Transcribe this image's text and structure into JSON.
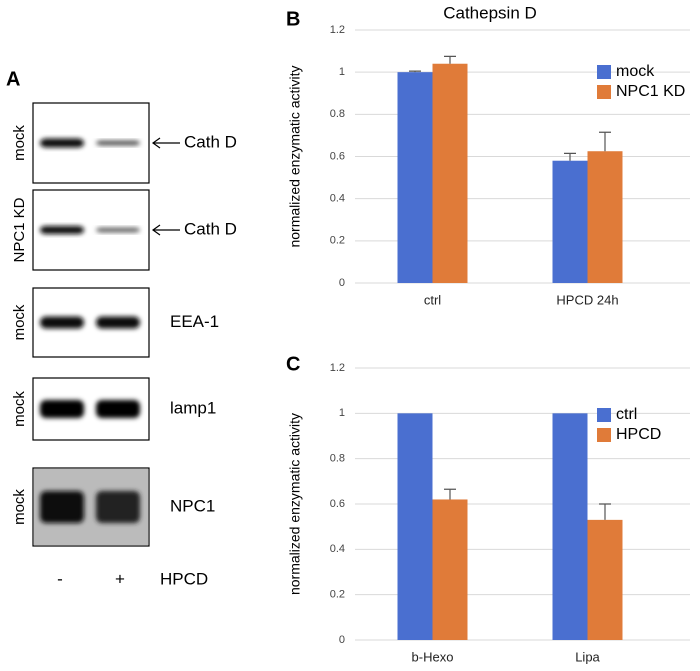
{
  "figure": {
    "panel_labels": [
      "A",
      "B",
      "C"
    ]
  },
  "blot": {
    "panels": [
      {
        "sample": "mock",
        "protein": "Cath D"
      },
      {
        "sample": "NPC1 KD",
        "protein": "Cath D"
      },
      {
        "sample": "mock",
        "protein": "EEA-1"
      },
      {
        "sample": "mock",
        "protein": "lamp1"
      },
      {
        "sample": "mock",
        "protein": "NPC1"
      }
    ],
    "lanes": [
      "-",
      "+"
    ],
    "treatment": "HPCD"
  },
  "chart_data": [
    {
      "type": "bar",
      "title": "Cathepsin D",
      "y_label": "normalized enzymatic activity",
      "categories": [
        "ctrl",
        "HPCD 24h"
      ],
      "series": [
        {
          "name": "mock",
          "color": "#4a6fd0",
          "values": [
            1.0,
            0.58
          ],
          "errors": [
            0.005,
            0.035
          ]
        },
        {
          "name": "NPC1 KD",
          "color": "#e07b39",
          "values": [
            1.04,
            0.625
          ],
          "errors": [
            0.035,
            0.09
          ]
        }
      ],
      "ylim": [
        0,
        1.2
      ],
      "yticks": [
        0,
        0.2,
        0.4,
        0.6,
        0.8,
        1,
        1.2
      ],
      "grid": true,
      "legend": "upper right"
    },
    {
      "type": "bar",
      "y_label": "normalized enzymatic activity",
      "categories": [
        "b-Hexo",
        "Lipa"
      ],
      "series": [
        {
          "name": "ctrl",
          "color": "#4a6fd0",
          "values": [
            1,
            1
          ],
          "errors": [
            null,
            null
          ]
        },
        {
          "name": "HPCD",
          "color": "#e07b39",
          "values": [
            0.62,
            0.53
          ],
          "errors": [
            0.045,
            0.07
          ]
        }
      ],
      "ylim": [
        0,
        1.2
      ],
      "yticks": [
        0,
        0.2,
        0.4,
        0.6,
        0.8,
        1,
        1.2
      ],
      "grid": true,
      "legend": "upper right"
    }
  ]
}
